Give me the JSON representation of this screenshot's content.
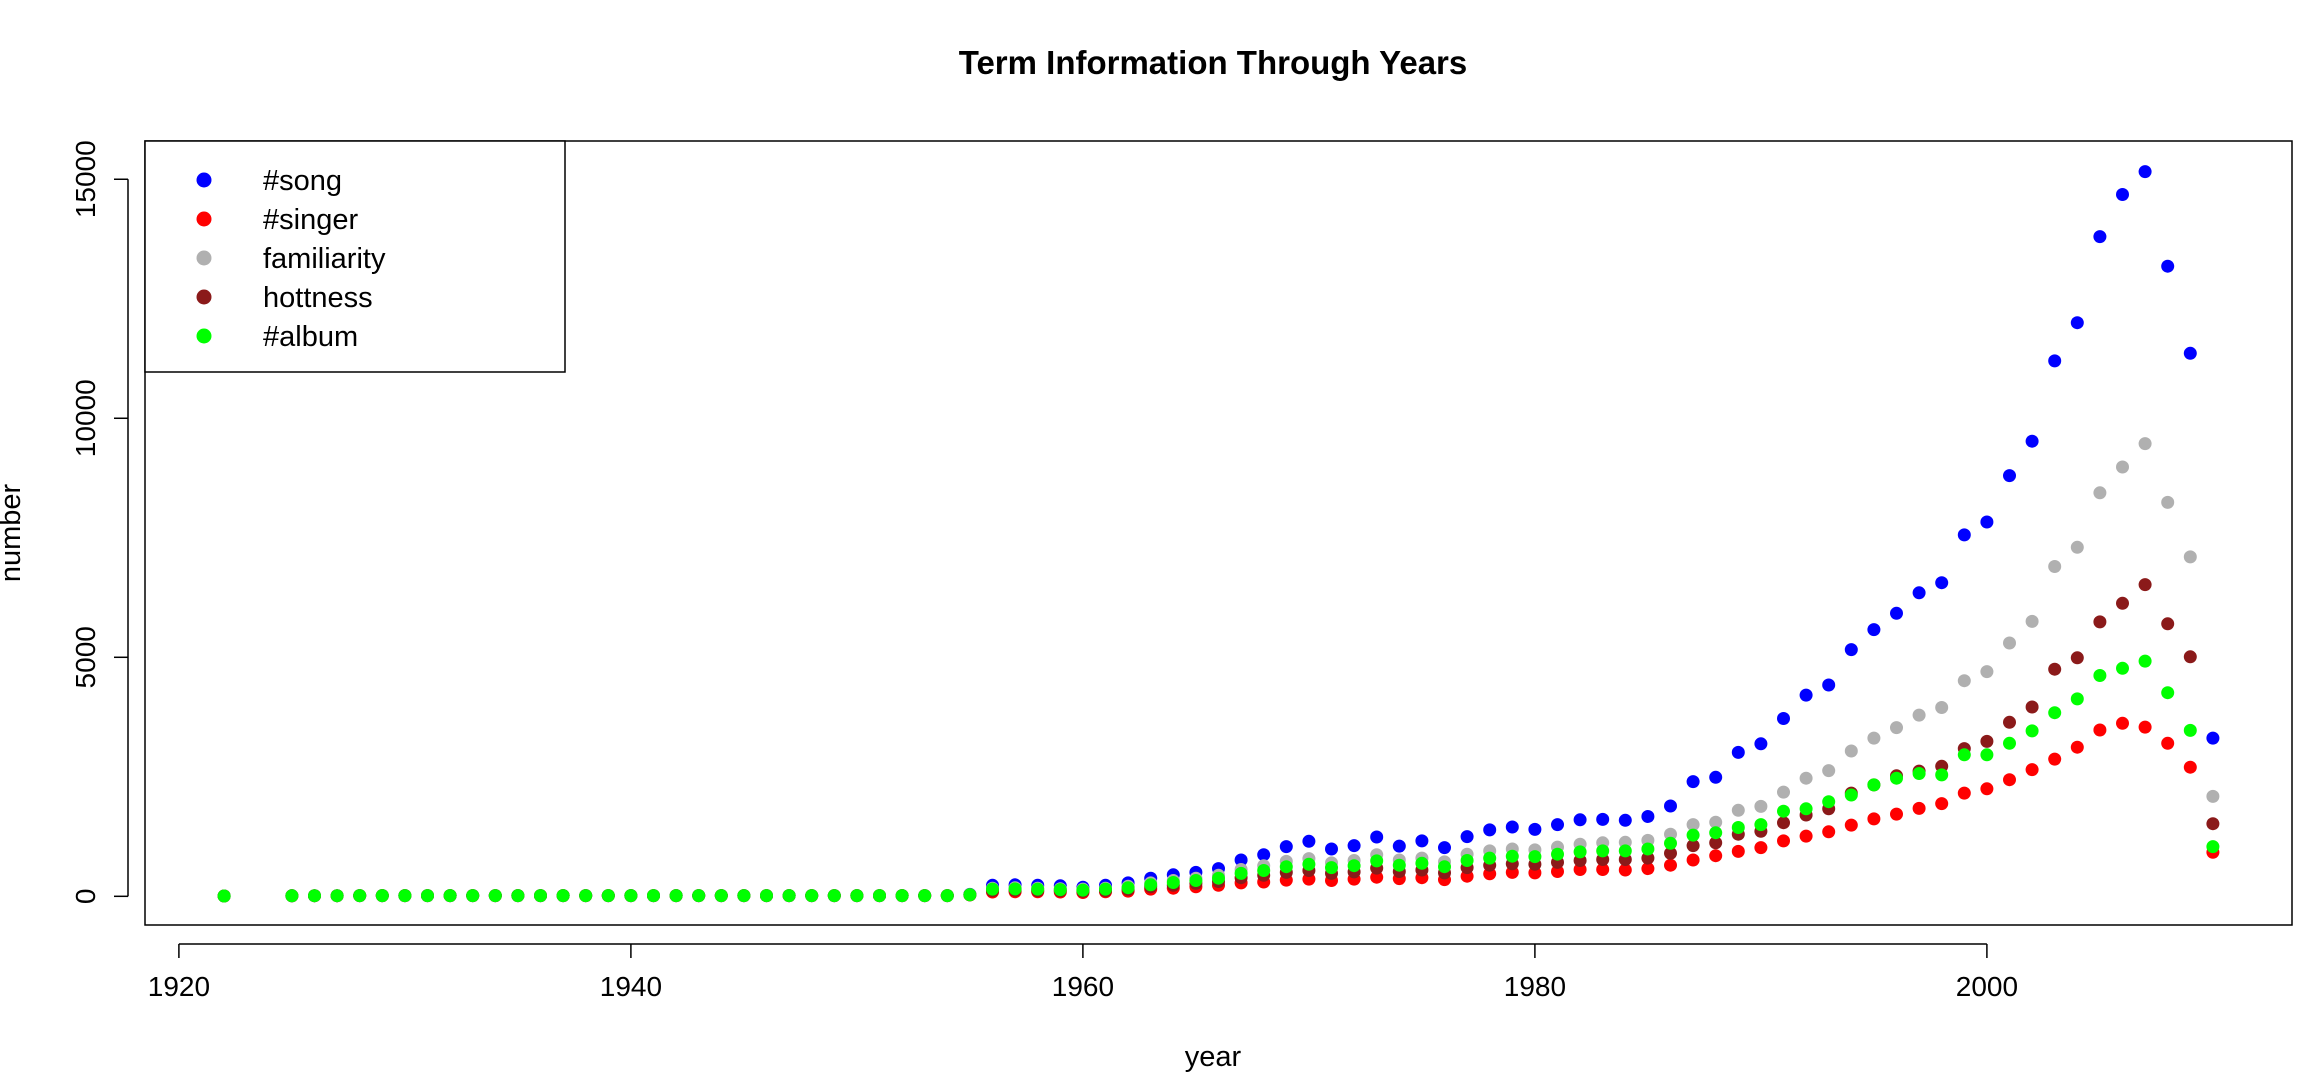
{
  "chart_data": {
    "type": "scatter",
    "title": "Term Information Through Years",
    "xlabel": "year",
    "ylabel": "number",
    "xlim": [
      1918.5,
      2013.5
    ],
    "ylim": [
      -600,
      15800
    ],
    "x_ticks": [
      1920,
      1940,
      1960,
      1980,
      2000
    ],
    "y_ticks": [
      0,
      5000,
      10000,
      15000
    ],
    "grid": false,
    "legend_position": "top-left",
    "x": [
      1922,
      1925,
      1926,
      1927,
      1928,
      1929,
      1930,
      1931,
      1932,
      1933,
      1934,
      1935,
      1936,
      1937,
      1938,
      1939,
      1940,
      1941,
      1942,
      1943,
      1944,
      1945,
      1946,
      1947,
      1948,
      1949,
      1950,
      1951,
      1952,
      1953,
      1954,
      1955,
      1956,
      1957,
      1958,
      1959,
      1960,
      1961,
      1962,
      1963,
      1964,
      1965,
      1966,
      1967,
      1968,
      1969,
      1970,
      1971,
      1972,
      1973,
      1974,
      1975,
      1976,
      1977,
      1978,
      1979,
      1980,
      1981,
      1982,
      1983,
      1984,
      1985,
      1986,
      1987,
      1988,
      1989,
      1990,
      1991,
      1992,
      1993,
      1994,
      1995,
      1996,
      1997,
      1998,
      1999,
      2000,
      2001,
      2002,
      2003,
      2004,
      2005,
      2006,
      2007,
      2008,
      2009,
      2010
    ],
    "series": [
      {
        "name": "#song",
        "color": "#0000ff",
        "values": [
          6,
          10,
          12,
          12,
          14,
          14,
          14,
          14,
          14,
          14,
          14,
          14,
          14,
          14,
          14,
          14,
          14,
          14,
          14,
          14,
          14,
          14,
          14,
          14,
          14,
          14,
          14,
          14,
          14,
          14,
          14,
          40,
          230,
          240,
          230,
          220,
          190,
          230,
          280,
          380,
          450,
          500,
          580,
          760,
          870,
          1040,
          1150,
          990,
          1060,
          1240,
          1050,
          1160,
          1020,
          1250,
          1390,
          1450,
          1400,
          1500,
          1600,
          1610,
          1590,
          1670,
          1890,
          2400,
          2490,
          3010,
          3190,
          3720,
          4210,
          4420,
          5160,
          5580,
          5920,
          6350,
          6560,
          7560,
          7830,
          8800,
          9520,
          11200,
          12000,
          13800,
          14680,
          15160,
          13180,
          11360,
          3310
        ]
      },
      {
        "name": "#singer",
        "color": "#ff0000",
        "values": [
          6,
          10,
          12,
          12,
          14,
          14,
          14,
          14,
          14,
          14,
          14,
          14,
          14,
          14,
          14,
          14,
          14,
          14,
          14,
          14,
          14,
          14,
          14,
          14,
          14,
          14,
          14,
          14,
          14,
          14,
          14,
          30,
          90,
          95,
          95,
          90,
          80,
          95,
          110,
          150,
          170,
          200,
          230,
          280,
          300,
          340,
          360,
          330,
          360,
          400,
          370,
          390,
          350,
          420,
          470,
          500,
          490,
          520,
          560,
          560,
          550,
          580,
          650,
          760,
          850,
          940,
          1020,
          1160,
          1260,
          1350,
          1490,
          1620,
          1720,
          1840,
          1940,
          2160,
          2250,
          2440,
          2650,
          2870,
          3120,
          3480,
          3620,
          3540,
          3200,
          2700,
          920
        ]
      },
      {
        "name": "familiarity",
        "color": "#b0b0b0",
        "values": [
          6,
          10,
          12,
          12,
          14,
          14,
          14,
          14,
          14,
          14,
          14,
          14,
          14,
          14,
          14,
          14,
          14,
          14,
          14,
          14,
          14,
          14,
          14,
          14,
          14,
          14,
          14,
          14,
          14,
          14,
          14,
          35,
          170,
          180,
          170,
          160,
          150,
          170,
          210,
          280,
          330,
          380,
          440,
          560,
          640,
          730,
          790,
          700,
          750,
          870,
          760,
          800,
          720,
          880,
          950,
          990,
          970,
          1030,
          1090,
          1120,
          1130,
          1170,
          1300,
          1500,
          1550,
          1800,
          1880,
          2180,
          2470,
          2630,
          3040,
          3310,
          3530,
          3790,
          3950,
          4510,
          4700,
          5300,
          5750,
          6900,
          7300,
          8440,
          8980,
          9470,
          8240,
          7100,
          2090
        ]
      },
      {
        "name": "hottness",
        "color": "#8b1a1a",
        "values": [
          6,
          10,
          12,
          12,
          14,
          14,
          14,
          14,
          14,
          14,
          14,
          14,
          14,
          14,
          14,
          14,
          14,
          14,
          14,
          14,
          14,
          14,
          14,
          14,
          14,
          14,
          14,
          14,
          14,
          14,
          14,
          30,
          120,
          125,
          120,
          115,
          105,
          120,
          145,
          200,
          230,
          270,
          310,
          390,
          440,
          500,
          540,
          480,
          510,
          590,
          520,
          550,
          490,
          600,
          650,
          680,
          670,
          710,
          750,
          770,
          770,
          800,
          900,
          1060,
          1120,
          1300,
          1360,
          1540,
          1700,
          1830,
          2160,
          2330,
          2520,
          2620,
          2720,
          3090,
          3240,
          3640,
          3960,
          4750,
          4990,
          5740,
          6130,
          6520,
          5700,
          5010,
          1520
        ]
      },
      {
        "name": "#album",
        "color": "#00ff00",
        "values": [
          6,
          10,
          12,
          12,
          14,
          14,
          14,
          14,
          14,
          14,
          14,
          14,
          14,
          14,
          14,
          14,
          14,
          14,
          14,
          14,
          14,
          14,
          14,
          14,
          14,
          14,
          14,
          14,
          14,
          14,
          14,
          32,
          150,
          155,
          150,
          140,
          130,
          150,
          180,
          240,
          290,
          330,
          380,
          480,
          540,
          620,
          670,
          600,
          640,
          740,
          650,
          690,
          620,
          750,
          800,
          840,
          830,
          880,
          930,
          950,
          950,
          990,
          1110,
          1280,
          1330,
          1440,
          1500,
          1780,
          1830,
          1980,
          2120,
          2330,
          2470,
          2570,
          2540,
          2960,
          2960,
          3200,
          3460,
          3840,
          4130,
          4620,
          4770,
          4920,
          4260,
          3470,
          1040
        ]
      }
    ]
  }
}
